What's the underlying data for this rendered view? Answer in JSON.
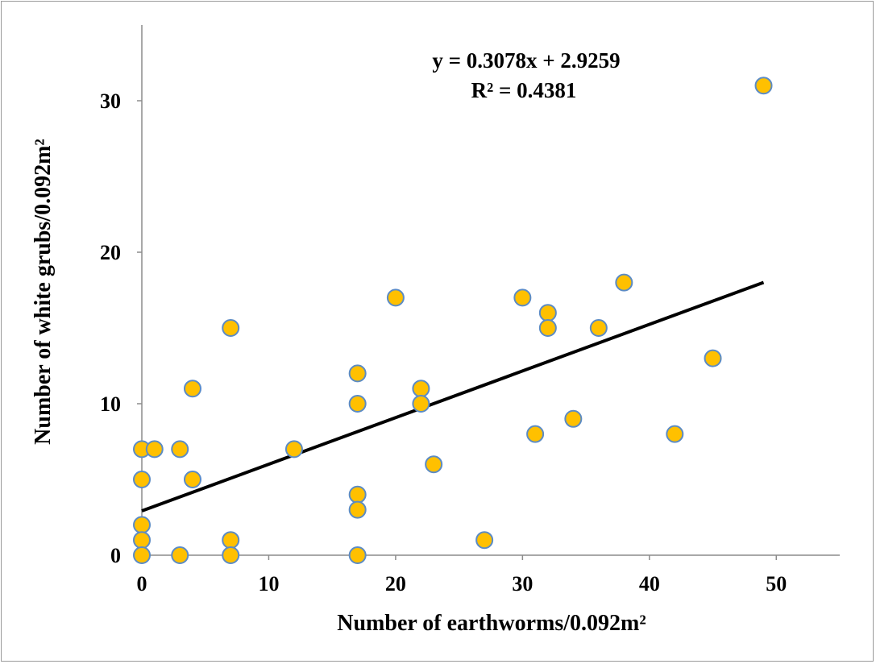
{
  "chart_data": {
    "type": "scatter",
    "xlabel": "Number of earthworms/0.092m²",
    "ylabel": "Number of white grubs/0.092m²",
    "xlim": [
      0,
      55
    ],
    "ylim": [
      0,
      35
    ],
    "xticks": [
      0,
      10,
      20,
      30,
      40,
      50
    ],
    "yticks": [
      0,
      10,
      20,
      30
    ],
    "grid": false,
    "point_color": "#FFC000",
    "point_edge_color": "#5B8BC5",
    "trendline_color": "#000000",
    "trendline": {
      "type": "linear",
      "slope": 0.3078,
      "intercept": 2.9259,
      "x_range": [
        0,
        49
      ],
      "equation_label": "y = 0.3078x + 2.9259",
      "r2_label": "R² = 0.4381"
    },
    "points": [
      {
        "x": 0,
        "y": 7
      },
      {
        "x": 0,
        "y": 5
      },
      {
        "x": 0,
        "y": 2
      },
      {
        "x": 0,
        "y": 1
      },
      {
        "x": 0,
        "y": 0
      },
      {
        "x": 1,
        "y": 7
      },
      {
        "x": 3,
        "y": 7
      },
      {
        "x": 3,
        "y": 0
      },
      {
        "x": 4,
        "y": 11
      },
      {
        "x": 4,
        "y": 5
      },
      {
        "x": 7,
        "y": 15
      },
      {
        "x": 7,
        "y": 1
      },
      {
        "x": 7,
        "y": 0
      },
      {
        "x": 12,
        "y": 7
      },
      {
        "x": 17,
        "y": 12
      },
      {
        "x": 17,
        "y": 10
      },
      {
        "x": 17,
        "y": 4
      },
      {
        "x": 17,
        "y": 3
      },
      {
        "x": 17,
        "y": 0
      },
      {
        "x": 20,
        "y": 17
      },
      {
        "x": 22,
        "y": 11
      },
      {
        "x": 22,
        "y": 10
      },
      {
        "x": 23,
        "y": 6
      },
      {
        "x": 27,
        "y": 1
      },
      {
        "x": 30,
        "y": 17
      },
      {
        "x": 31,
        "y": 8
      },
      {
        "x": 32,
        "y": 16
      },
      {
        "x": 32,
        "y": 15
      },
      {
        "x": 34,
        "y": 9
      },
      {
        "x": 36,
        "y": 15
      },
      {
        "x": 38,
        "y": 18
      },
      {
        "x": 42,
        "y": 8
      },
      {
        "x": 45,
        "y": 13
      },
      {
        "x": 49,
        "y": 31
      }
    ]
  }
}
